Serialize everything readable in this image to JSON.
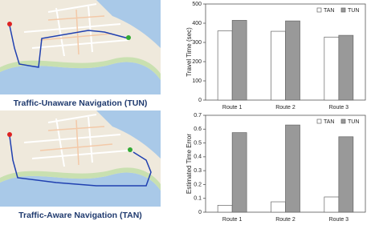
{
  "figure": {
    "captions": [
      "Traffic-Unaware Navigation (TUN)",
      "Traffic-Aware Navigation (TAN)"
    ]
  },
  "chart_data": [
    {
      "type": "bar",
      "ylabel": "Travel Time (sec)",
      "categories": [
        "Route 1",
        "Route 2",
        "Route 3"
      ],
      "series": [
        {
          "name": "TAN",
          "color": "#ffffff",
          "values": [
            360,
            358,
            328
          ]
        },
        {
          "name": "TUN",
          "color": "#999999",
          "values": [
            415,
            412,
            337
          ]
        }
      ],
      "ylim": [
        0,
        500
      ],
      "yticks": [
        0,
        100,
        200,
        300,
        400,
        500
      ],
      "legend": "top-right"
    },
    {
      "type": "bar",
      "ylabel": "Estimated Time Error",
      "categories": [
        "Route 1",
        "Route 2",
        "Route 3"
      ],
      "series": [
        {
          "name": "TAN",
          "color": "#ffffff",
          "values": [
            0.05,
            0.075,
            0.11
          ]
        },
        {
          "name": "TUN",
          "color": "#999999",
          "values": [
            0.575,
            0.63,
            0.545
          ]
        }
      ],
      "ylim": [
        0,
        0.7
      ],
      "yticks": [
        0,
        0.1,
        0.2,
        0.3,
        0.4,
        0.5,
        0.6,
        0.7
      ],
      "legend": "top-right"
    }
  ]
}
